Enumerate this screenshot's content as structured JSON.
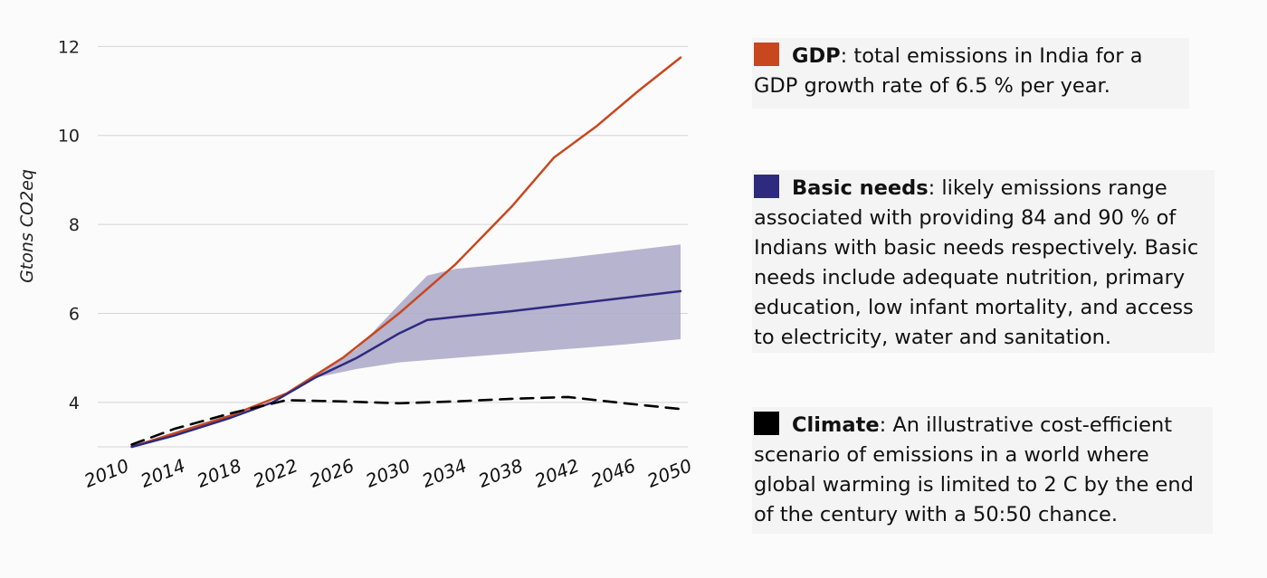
{
  "chart_data": {
    "type": "line",
    "ylabel": "Gtons CO2eq",
    "ylim": [
      3,
      12.8
    ],
    "xlim": [
      2010,
      2050
    ],
    "yticks": [
      "4",
      "6",
      "8",
      "10",
      "12"
    ],
    "xticks": [
      "2010",
      "2014",
      "2018",
      "2022",
      "2026",
      "2030",
      "2034",
      "2038",
      "2042",
      "2046",
      "2050"
    ],
    "grid": true,
    "legend_placement": "right",
    "series": [
      {
        "name": "GDP",
        "style": "solid",
        "color": "#c8471f",
        "x": [
          2011,
          2014,
          2018,
          2022,
          2026,
          2030,
          2034,
          2038,
          2041,
          2044,
          2047,
          2050
        ],
        "y": [
          3.0,
          3.3,
          3.7,
          4.2,
          5.0,
          6.0,
          7.1,
          8.4,
          9.5,
          10.2,
          11.0,
          11.75
        ]
      },
      {
        "name": "Basic needs",
        "style": "solid",
        "color": "#2e2a7e",
        "x": [
          2011,
          2014,
          2018,
          2021,
          2024,
          2027,
          2030,
          2032,
          2034,
          2038,
          2042,
          2046,
          2050
        ],
        "y": [
          3.0,
          3.25,
          3.65,
          4.0,
          4.55,
          5.0,
          5.55,
          5.85,
          5.92,
          6.05,
          6.2,
          6.35,
          6.5
        ]
      },
      {
        "name": "Climate",
        "style": "dashed",
        "color": "#000000",
        "x": [
          2011,
          2014,
          2018,
          2022,
          2026,
          2030,
          2034,
          2038,
          2042,
          2046,
          2050
        ],
        "y": [
          3.05,
          3.4,
          3.75,
          4.05,
          4.02,
          3.98,
          4.02,
          4.08,
          4.12,
          3.98,
          3.85
        ]
      }
    ],
    "band": {
      "name": "Basic needs range",
      "color": "#a9a7c7",
      "x": [
        2024,
        2027,
        2030,
        2032,
        2034,
        2038,
        2042,
        2046,
        2050
      ],
      "upper": [
        4.6,
        5.2,
        6.2,
        6.85,
        7.0,
        7.12,
        7.25,
        7.4,
        7.55
      ],
      "lower": [
        4.55,
        4.75,
        4.9,
        4.95,
        5.0,
        5.1,
        5.2,
        5.3,
        5.42
      ]
    }
  },
  "legend": [
    {
      "name": "GDP",
      "color": "#c8471f",
      "text": ": total emissions in India for a GDP growth rate of 6.5 % per year."
    },
    {
      "name": "Basic needs",
      "color": "#2e2a7e",
      "text": ": likely emissions range associated with providing 84 and 90 % of Indians with basic needs respectively. Basic needs include adequate nutrition, primary education, low infant mortality, and access to electricity, water and sanitation."
    },
    {
      "name": "Climate",
      "color": "#000000",
      "text": ": An illustrative cost-efficient scenario of emissions in a world where global warming is limited to 2 C by the end of the century with a 50:50 chance."
    }
  ]
}
